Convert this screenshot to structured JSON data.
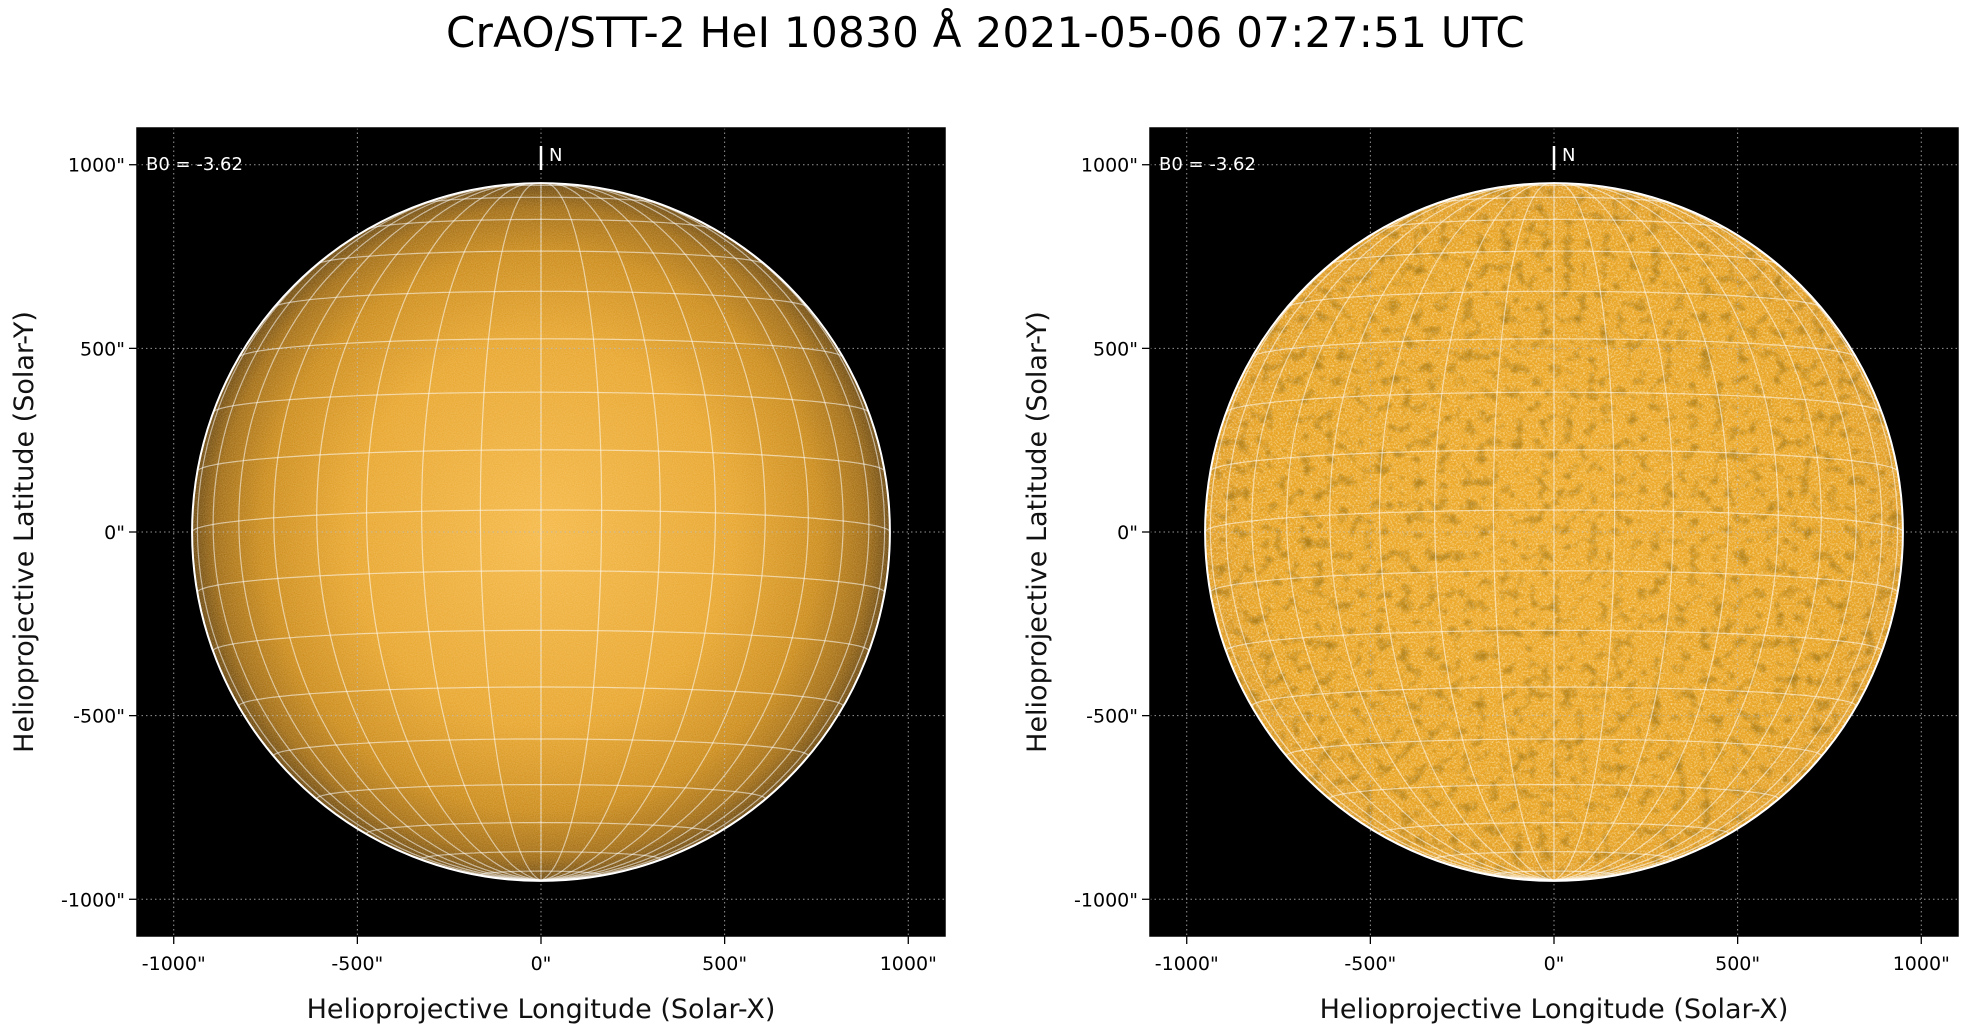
{
  "title": "CrAO/STT-2 HeI 10830 Å 2021-05-06 07:27:51 UTC",
  "colors": {
    "background": "#000000",
    "disk_base": "#e8a020",
    "grid_line": "#ffffff",
    "limb_circle": "#ffffff"
  },
  "panels": [
    {
      "name": "left",
      "xlabel": "Helioprojective Longitude (Solar-X)",
      "ylabel": "Helioprojective Latitude (Solar-Y)",
      "xticks": [
        "-1000\"",
        "-500\"",
        "0\"",
        "500\"",
        "1000\""
      ],
      "yticks": [
        "1000\"",
        "500\"",
        "0\"",
        "-500\"",
        "-1000\""
      ],
      "tick_values": [
        -1000,
        -500,
        0,
        500,
        1000
      ],
      "b0_label": "B0 = -3.62",
      "north_label": "N",
      "style": "limb-darkened"
    },
    {
      "name": "right",
      "xlabel": "Helioprojective Longitude (Solar-X)",
      "ylabel": "Helioprojective Latitude (Solar-Y)",
      "xticks": [
        "-1000\"",
        "-500\"",
        "0\"",
        "500\"",
        "1000\""
      ],
      "yticks": [
        "1000\"",
        "500\"",
        "0\"",
        "-500\"",
        "-1000\""
      ],
      "tick_values": [
        -1000,
        -500,
        0,
        500,
        1000
      ],
      "b0_label": "B0 = -3.62",
      "north_label": "N",
      "style": "limb-corrected"
    }
  ],
  "axis_range_arcsec": [
    -1100,
    1100
  ],
  "solar_radius_arcsec": 950,
  "b0_degrees": -3.62,
  "grid_spacing_degrees": 10
}
